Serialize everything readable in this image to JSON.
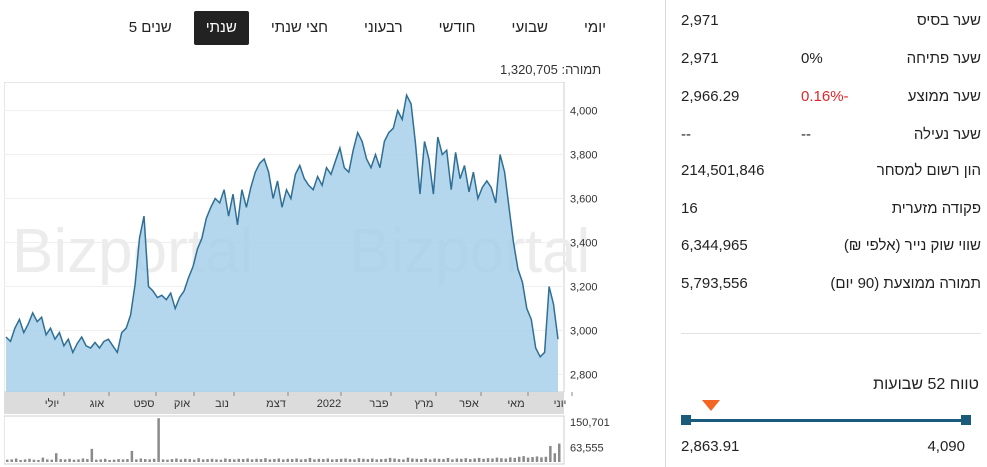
{
  "tabs": [
    {
      "label": "יומי",
      "active": false
    },
    {
      "label": "שבועי",
      "active": false
    },
    {
      "label": "חודשי",
      "active": false
    },
    {
      "label": "רבעוני",
      "active": false
    },
    {
      "label": "חצי שנתי",
      "active": false
    },
    {
      "label": "שנתי",
      "active": true
    },
    {
      "label": "5 שנים",
      "active": false
    }
  ],
  "volume": {
    "label": "תמורה:",
    "value": "1,320,705"
  },
  "stats": [
    {
      "label": "שער בסיס",
      "value": "2,971",
      "pct": ""
    },
    {
      "label": "שער פתיחה",
      "value": "2,971",
      "pct": "0%"
    },
    {
      "label": "שער ממוצע",
      "value": "2,966.29",
      "pct": "0.16%-"
    },
    {
      "label": "שער נעילה",
      "value": "--",
      "pct": "--"
    },
    {
      "label": "הון רשום למסחר",
      "value": "214,501,846",
      "pct": ""
    },
    {
      "label": "פקודה מזערית",
      "value": "16",
      "pct": ""
    },
    {
      "label": "שווי שוק נייר (אלפי ₪)",
      "value": "6,344,965",
      "pct": ""
    },
    {
      "label": "תמורה ממוצעת (90 יום)",
      "value": "5,793,556",
      "pct": ""
    }
  ],
  "range52": {
    "title": "טווח 52 שבועות",
    "low": "2,863.91",
    "high": "4,090",
    "current_fraction": 0.088
  },
  "colors": {
    "accent": "#1a5a7a",
    "negative": "#e0262b",
    "marker": "#f26522",
    "line": "#2f6f95",
    "fill": "#a7d0ea"
  },
  "chart_data": {
    "type": "area",
    "watermark": "Bizportal",
    "y_ticks": [
      "4,000",
      "3,800",
      "3,600",
      "3,400",
      "3,200",
      "3,000",
      "2,800"
    ],
    "ylim": [
      2720,
      4130
    ],
    "x_labels": [
      "יולי",
      "אוג",
      "ספט",
      "אוק",
      "נוב",
      "דצמ",
      "2022",
      "פבר",
      "מרץ",
      "אפר",
      "מאי",
      "יוני"
    ],
    "values": [
      2970,
      2950,
      3010,
      3050,
      2990,
      3030,
      3080,
      3040,
      3060,
      2980,
      3010,
      2960,
      2990,
      2930,
      2960,
      2900,
      2940,
      2970,
      2930,
      2920,
      2945,
      2920,
      2950,
      2960,
      2930,
      2900,
      2990,
      3010,
      3070,
      3210,
      3420,
      3520,
      3200,
      3180,
      3150,
      3160,
      3140,
      3170,
      3100,
      3150,
      3180,
      3240,
      3290,
      3370,
      3420,
      3510,
      3560,
      3600,
      3580,
      3640,
      3520,
      3620,
      3480,
      3640,
      3560,
      3650,
      3720,
      3760,
      3780,
      3720,
      3600,
      3680,
      3560,
      3640,
      3600,
      3710,
      3750,
      3690,
      3660,
      3640,
      3700,
      3660,
      3740,
      3710,
      3770,
      3830,
      3740,
      3720,
      3820,
      3900,
      3860,
      3780,
      3740,
      3800,
      3740,
      3860,
      3900,
      3920,
      4000,
      3960,
      4070,
      4030,
      3850,
      3620,
      3860,
      3780,
      3620,
      3880,
      3800,
      3820,
      3640,
      3810,
      3690,
      3750,
      3630,
      3720,
      3600,
      3650,
      3680,
      3650,
      3580,
      3800,
      3720,
      3560,
      3400,
      3280,
      3220,
      3100,
      3050,
      2920,
      2880,
      2900,
      3200,
      3120,
      2960
    ],
    "volume_ticks": [
      "150,701",
      "63,555"
    ],
    "volume_max": 150701,
    "volumes": [
      8000,
      9000,
      12000,
      7000,
      9000,
      11000,
      8000,
      7000,
      15000,
      9000,
      8000,
      30000,
      10000,
      9000,
      11000,
      8000,
      9000,
      12000,
      10000,
      45000,
      8000,
      9000,
      11000,
      7000,
      8000,
      10000,
      9000,
      10000,
      38000,
      9000,
      12000,
      10000,
      9000,
      11000,
      150000,
      9000,
      8000,
      10000,
      12000,
      9000,
      11000,
      10000,
      8000,
      13000,
      9000,
      10000,
      11000,
      9000,
      8000,
      12000,
      10000,
      9000,
      11000,
      10000,
      12000,
      9000,
      11000,
      10000,
      13000,
      9000,
      10000,
      12000,
      9000,
      11000,
      10000,
      12000,
      9000,
      10000,
      14000,
      9000,
      11000,
      10000,
      12000,
      9000,
      10000,
      11000,
      12000,
      10000,
      9000,
      13000,
      11000,
      10000,
      12000,
      9000,
      10000,
      11000,
      14000,
      12000,
      10000,
      9000,
      15000,
      12000,
      11000,
      10000,
      13000,
      9000,
      12000,
      11000,
      10000,
      14000,
      9000,
      12000,
      11000,
      13000,
      10000,
      12000,
      14000,
      11000,
      13000,
      12000,
      15000,
      13000,
      12000,
      16000,
      14000,
      18000,
      20000,
      15000,
      17000,
      19000,
      16000,
      18000,
      55000,
      30000,
      63000
    ]
  }
}
